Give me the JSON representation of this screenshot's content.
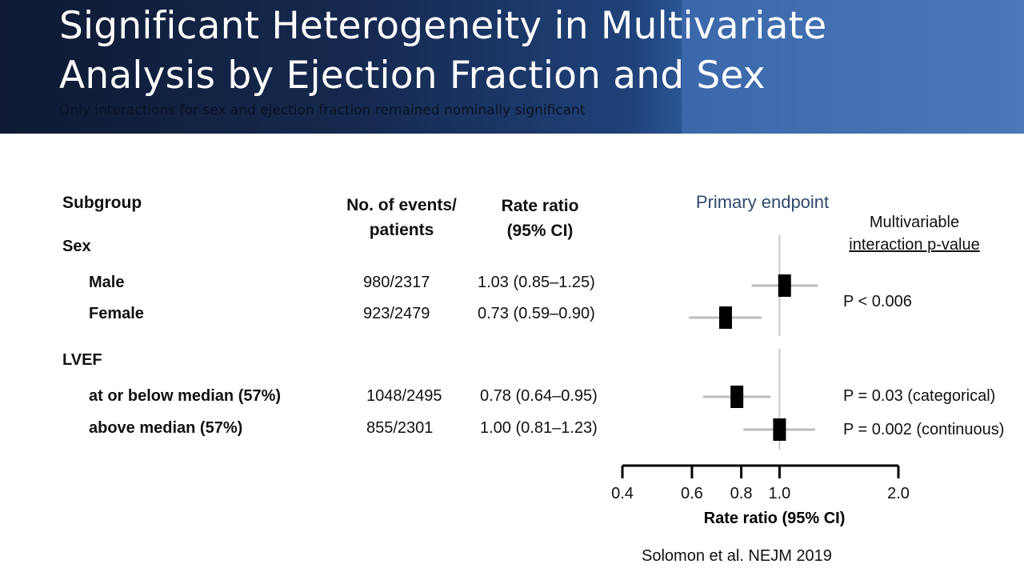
{
  "slide": {
    "title_line1": "Significant Heterogeneity in Multivariate",
    "title_line2": "Analysis by Ejection Fraction and Sex",
    "subtitle": "Only interactions for sex and ejection fraction remained nominally significant",
    "citation": "Solomon et al. NEJM 2019"
  },
  "table": {
    "header_subgroup": "Subgroup",
    "header_events_line1": "No. of events/",
    "header_events_line2": "patients",
    "header_rate_line1": "Rate ratio",
    "header_rate_line2": "(95% CI)",
    "groups": [
      {
        "label": "Sex",
        "rows": [
          {
            "name": "Male",
            "events": "980/2317",
            "ci_text": "1.03 (0.85–1.25)"
          },
          {
            "name": "Female",
            "events": "923/2479",
            "ci_text": "0.73 (0.59–0.90)"
          }
        ]
      },
      {
        "label": "LVEF",
        "rows": [
          {
            "name": "at or below median (57%)",
            "events": "1048/2495",
            "ci_text": "0.78 (0.64–0.95)"
          },
          {
            "name": "above median (57%)",
            "events": "855/2301",
            "ci_text": "1.00 (0.81–1.23)"
          }
        ]
      }
    ]
  },
  "interaction": {
    "header_line1": "Multivariable",
    "header_line2": "interaction p-value",
    "sex_p": "P < 0.006",
    "lvef_p_categorical": "P = 0.03 (categorical)",
    "lvef_p_continuous": "P = 0.002 (continuous)"
  },
  "chart_data": {
    "type": "forest",
    "title": "Primary endpoint",
    "xlabel": "Rate ratio (95% CI)",
    "x_scale": "log",
    "xlim": [
      0.4,
      2.0
    ],
    "xticks": [
      0.4,
      0.6,
      0.8,
      1.0,
      2.0
    ],
    "xtick_labels": [
      "0.4",
      "0.6",
      "0.8",
      "1.0",
      "2.0"
    ],
    "reference_line": 1.0,
    "points": [
      {
        "label": "Male",
        "estimate": 1.03,
        "lower": 0.85,
        "upper": 1.25
      },
      {
        "label": "Female",
        "estimate": 0.73,
        "lower": 0.59,
        "upper": 0.9
      },
      {
        "label": "at or below median (57%)",
        "estimate": 0.78,
        "lower": 0.64,
        "upper": 0.95
      },
      {
        "label": "above median (57%)",
        "estimate": 1.0,
        "lower": 0.81,
        "upper": 1.23
      }
    ],
    "colors": {
      "marker": "#000000",
      "ci_line": "#bdbdbd",
      "reference": "#c8c8c8",
      "title": "#2e4a6b"
    }
  }
}
